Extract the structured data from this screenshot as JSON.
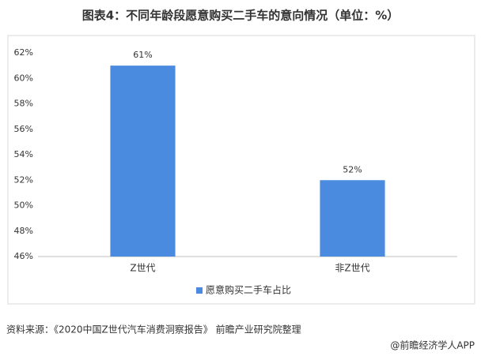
{
  "chart_data": {
    "type": "bar",
    "title": "图表4：不同年龄段愿意购买二手车的意向情况（单位：%）",
    "categories": [
      "Z世代",
      "非Z世代"
    ],
    "series": [
      {
        "name": "愿意购买二手车占比",
        "color": "#4a8be0",
        "values": [
          61,
          52
        ],
        "value_labels": [
          "61%",
          "52%"
        ]
      }
    ],
    "ylim": [
      46,
      62
    ],
    "yticks": [
      {
        "value": 46,
        "label": "46%"
      },
      {
        "value": 48,
        "label": "48%"
      },
      {
        "value": 50,
        "label": "50%"
      },
      {
        "value": 52,
        "label": "52%"
      },
      {
        "value": 54,
        "label": "54%"
      },
      {
        "value": 56,
        "label": "56%"
      },
      {
        "value": 58,
        "label": "58%"
      },
      {
        "value": 60,
        "label": "60%"
      },
      {
        "value": 62,
        "label": "62%"
      }
    ],
    "grid": false,
    "legend": "bottom",
    "source": "资料来源：《2020中国Z世代汽车消费洞察报告》 前瞻产业研究院整理",
    "credit": "@前瞻经济学人APP"
  }
}
